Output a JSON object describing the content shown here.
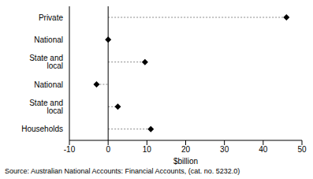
{
  "chart_data": {
    "type": "dot",
    "orientation": "horizontal",
    "categories": [
      "Private",
      "National",
      "State and local",
      "National",
      "State and local",
      "Households"
    ],
    "values": [
      46,
      0,
      9.5,
      -3,
      2.5,
      11
    ],
    "xlim": [
      -10,
      50
    ],
    "xticks": [
      -10,
      0,
      10,
      20,
      30,
      40,
      50
    ],
    "x_label": "$billion",
    "annotation": "Source: Australian National Accounts: Financial Accounts, (cat. no. 5232.0)",
    "color": "#000000",
    "marker": "diamond",
    "line_style": "dashed"
  }
}
